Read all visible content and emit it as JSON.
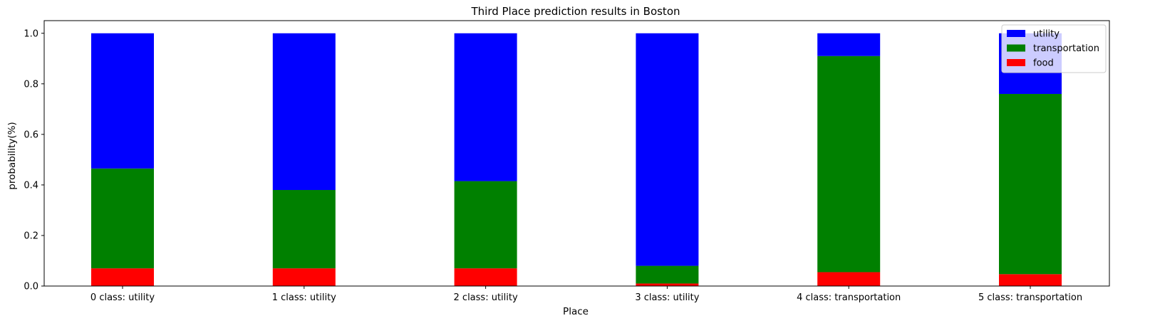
{
  "chart_data": {
    "type": "bar",
    "stacked": true,
    "title": "Third Place prediction results in Boston",
    "xlabel": "Place",
    "ylabel": "probability(%)",
    "ylim": [
      0,
      1.05
    ],
    "yticks": [
      "0.0",
      "0.2",
      "0.4",
      "0.6",
      "0.8",
      "1.0"
    ],
    "grid": false,
    "legend_position": "top-right",
    "categories": [
      "0 class: utility",
      "1 class: utility",
      "2 class: utility",
      "3 class: utility",
      "4 class: transportation",
      "5 class: transportation"
    ],
    "series": [
      {
        "name": "food",
        "color": "#ff0000",
        "values": [
          0.07,
          0.07,
          0.07,
          0.01,
          0.055,
          0.047
        ]
      },
      {
        "name": "transportation",
        "color": "#008000",
        "values": [
          0.395,
          0.31,
          0.345,
          0.07,
          0.855,
          0.713
        ]
      },
      {
        "name": "utility",
        "color": "#0000ff",
        "values": [
          0.535,
          0.62,
          0.585,
          0.92,
          0.09,
          0.24
        ]
      }
    ],
    "legend_order": [
      "utility",
      "transportation",
      "food"
    ]
  }
}
